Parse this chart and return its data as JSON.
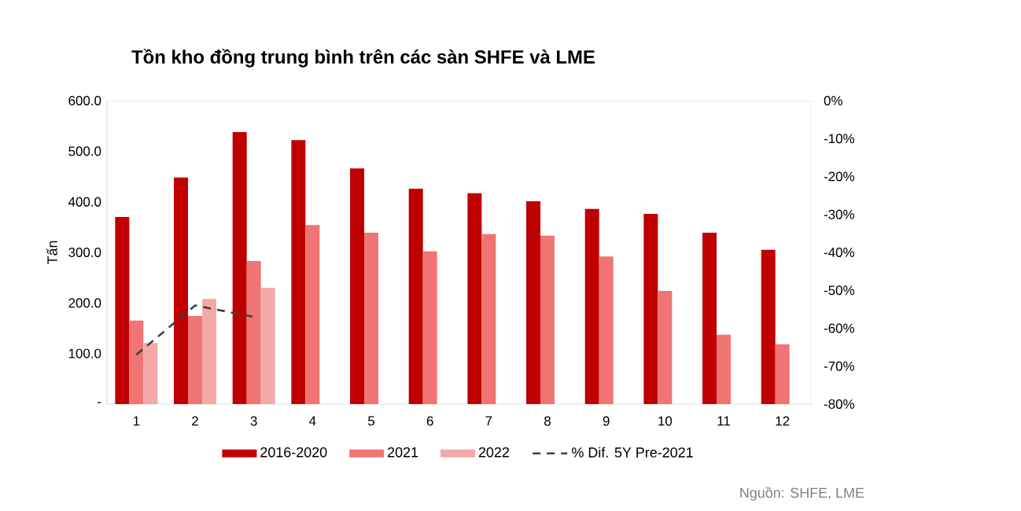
{
  "chart_data": {
    "type": "bar",
    "title": "Tồn kho đồng trung bình trên các sàn SHFE và LME",
    "ylabel": "Tấn",
    "categories": [
      "1",
      "2",
      "3",
      "4",
      "5",
      "6",
      "7",
      "8",
      "9",
      "10",
      "11",
      "12"
    ],
    "series": [
      {
        "name": "2016-2020",
        "color": "#c00000",
        "values": [
          370,
          448,
          538,
          522,
          466,
          426,
          417,
          401,
          386,
          376,
          339,
          305
        ]
      },
      {
        "name": "2021",
        "color": "#f07474",
        "values": [
          165,
          174,
          283,
          354,
          339,
          302,
          336,
          333,
          292,
          224,
          137,
          118
        ]
      },
      {
        "name": "2022",
        "color": "#f5a8a8",
        "values": [
          121,
          208,
          230,
          null,
          null,
          null,
          null,
          null,
          null,
          null,
          null,
          null
        ]
      },
      {
        "name": "% Dif. 5Y Pre-2021",
        "type": "line",
        "axis": "y2",
        "color": "#404040",
        "line_style": "dashed",
        "values": [
          -67,
          -54,
          -57,
          null,
          null,
          null,
          null,
          null,
          null,
          null,
          null,
          null
        ]
      }
    ],
    "ylim": [
      0,
      600
    ],
    "yticks": [
      {
        "value": 0,
        "label": "-"
      },
      {
        "value": 100,
        "label": "100.0"
      },
      {
        "value": 200,
        "label": "200.0"
      },
      {
        "value": 300,
        "label": "300.0"
      },
      {
        "value": 400,
        "label": "400.0"
      },
      {
        "value": 500,
        "label": "500.0"
      },
      {
        "value": 600,
        "label": "600.0"
      }
    ],
    "y2lim": [
      -80,
      0
    ],
    "y2ticks": [
      {
        "value": -80,
        "label": "-80%"
      },
      {
        "value": -70,
        "label": "-70%"
      },
      {
        "value": -60,
        "label": "-60%"
      },
      {
        "value": -50,
        "label": "-50%"
      },
      {
        "value": -40,
        "label": "-40%"
      },
      {
        "value": -30,
        "label": "-30%"
      },
      {
        "value": -20,
        "label": "-20%"
      },
      {
        "value": -10,
        "label": "-10%"
      },
      {
        "value": 0,
        "label": "0%"
      }
    ],
    "legend": "bottom",
    "marker": "none",
    "annotations": [
      "Nguồn: SHFE, LME"
    ]
  }
}
